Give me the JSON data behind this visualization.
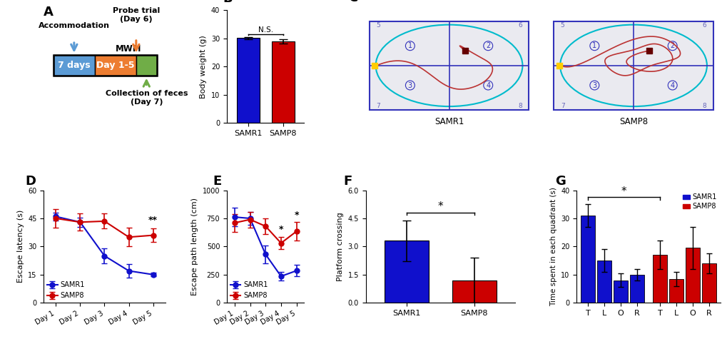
{
  "panel_A": {
    "box1_label": "7 days",
    "box1_color": "#5B9BD5",
    "box2_label": "Day 1-5",
    "box2_color": "#ED7D31",
    "box3_color": "#70AD47",
    "mwm_label": "MWM",
    "accommodation_label": "Accommodation",
    "probe_label": "Probe trial\n(Day 6)",
    "feces_label": "Collection of feces\n(Day 7)",
    "arrow1_color": "#5B9BD5",
    "arrow2_color": "#ED7D31",
    "arrow3_color": "#70AD47"
  },
  "panel_B": {
    "categories": [
      "SAMR1",
      "SAMP8"
    ],
    "values": [
      30.1,
      29.0
    ],
    "errors": [
      0.35,
      0.7
    ],
    "bar_colors": [
      "#1010CC",
      "#CC0000"
    ],
    "ylabel": "Body weight (g)",
    "ylim": [
      0,
      40
    ],
    "yticks": [
      0,
      10,
      20,
      30,
      40
    ],
    "ns_text": "N.S."
  },
  "panel_D": {
    "days": [
      "Day 1",
      "Day 2",
      "Day 3",
      "Day 4",
      "Day 5"
    ],
    "samr1_mean": [
      46.0,
      43.0,
      25.0,
      17.0,
      15.0
    ],
    "samr1_err": [
      2.0,
      2.5,
      4.0,
      3.5,
      1.0
    ],
    "samp8_mean": [
      45.0,
      43.0,
      43.5,
      35.0,
      36.0
    ],
    "samp8_err": [
      5.0,
      4.5,
      4.0,
      5.0,
      3.5
    ],
    "ylabel": "Escape latency (s)",
    "ylim": [
      0,
      60
    ],
    "yticks": [
      0,
      15,
      30,
      45,
      60
    ],
    "samr1_color": "#1010CC",
    "samp8_color": "#CC0000",
    "sig_day5": "**"
  },
  "panel_E": {
    "days": [
      "Day 1",
      "Day 2",
      "Day 3",
      "Day 4",
      "Day 5"
    ],
    "samr1_mean": [
      762,
      750,
      430,
      235,
      285
    ],
    "samr1_err": [
      80,
      55,
      80,
      40,
      50
    ],
    "samp8_mean": [
      710,
      740,
      680,
      530,
      635
    ],
    "samp8_err": [
      80,
      70,
      70,
      55,
      80
    ],
    "ylabel": "Escape path length (cm)",
    "ylim": [
      0,
      1000
    ],
    "yticks": [
      0,
      250,
      500,
      750,
      1000
    ],
    "samr1_color": "#1010CC",
    "samp8_color": "#CC0000",
    "sig_day4": "*",
    "sig_day5": "*"
  },
  "panel_F": {
    "categories": [
      "SAMR1",
      "SAMP8"
    ],
    "values": [
      3.3,
      1.2
    ],
    "errors": [
      1.1,
      1.2
    ],
    "bar_colors": [
      "#1010CC",
      "#CC0000"
    ],
    "ylabel": "Platform crossing",
    "ylim": [
      0,
      6.0
    ],
    "yticks": [
      0,
      1.5,
      3.0,
      4.5,
      6.0
    ],
    "sig_text": "*"
  },
  "panel_G": {
    "groups": [
      "T",
      "L",
      "O",
      "R",
      "T",
      "L",
      "O",
      "R"
    ],
    "values": [
      31.0,
      15.0,
      8.0,
      10.0,
      17.0,
      8.5,
      19.5,
      14.0
    ],
    "errors": [
      4.0,
      4.0,
      2.5,
      2.0,
      5.0,
      2.5,
      7.5,
      3.5
    ],
    "bar_colors": [
      "#1010CC",
      "#1010CC",
      "#1010CC",
      "#1010CC",
      "#CC0000",
      "#CC0000",
      "#CC0000",
      "#CC0000"
    ],
    "ylabel": "Time spent in each quadrant (s)",
    "ylim": [
      0,
      40
    ],
    "yticks": [
      0,
      10,
      20,
      30,
      40
    ],
    "sig_text": "*"
  }
}
